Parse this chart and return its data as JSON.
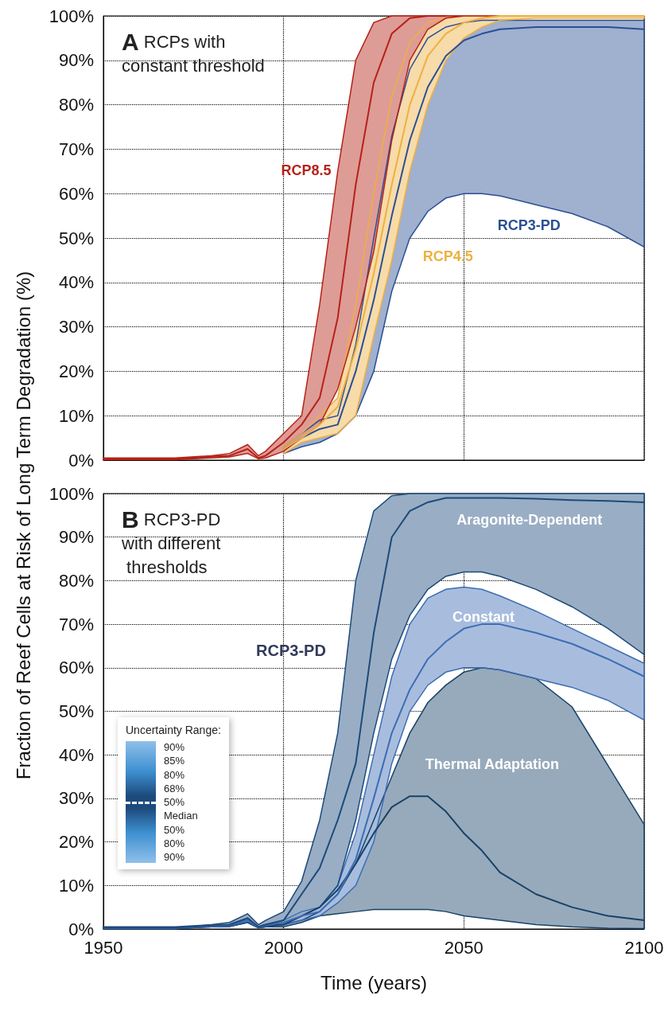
{
  "chart_data": [
    {
      "type": "line",
      "title": "A RCPs with constant threshold",
      "ylabel": "Fraction of Reef Cells at Risk of Long Term Degradation (%)",
      "x": [
        1950,
        1960,
        1970,
        1980,
        1985,
        1990,
        1993,
        1995,
        2000,
        2005,
        2010,
        2015,
        2020,
        2025,
        2030,
        2035,
        2040,
        2045,
        2050,
        2055,
        2060,
        2070,
        2080,
        2090,
        2100
      ],
      "series": [
        {
          "name": "RCP8.5",
          "color": "#b52218",
          "values": [
            0.3,
            0.3,
            0.3,
            0.8,
            1,
            2.5,
            0.5,
            1,
            4,
            8,
            14,
            32,
            62,
            85,
            96,
            99.5,
            100,
            100,
            null,
            null,
            null,
            null,
            null,
            null,
            null
          ],
          "lower": [
            0.1,
            0.1,
            0.1,
            0.5,
            0.7,
            1.5,
            0.3,
            0.5,
            2,
            5,
            8,
            16,
            30,
            47,
            72,
            90,
            97,
            99.5,
            100,
            100,
            100,
            100,
            100,
            100,
            100
          ],
          "upper": [
            0.5,
            0.5,
            0.5,
            1,
            1.5,
            3.5,
            1,
            2,
            6,
            10,
            35,
            65,
            90,
            98.5,
            100,
            100,
            100,
            100,
            100,
            100,
            100,
            100,
            100,
            100,
            100
          ]
        },
        {
          "name": "RCP4.5",
          "color": "#eeb040",
          "values": [
            null,
            null,
            null,
            null,
            null,
            null,
            null,
            null,
            2.5,
            5,
            8,
            12,
            25,
            42,
            62,
            80,
            91,
            96,
            98.5,
            99.5,
            100,
            100,
            100,
            100,
            100
          ],
          "lower": [
            null,
            null,
            null,
            null,
            null,
            null,
            null,
            null,
            1.5,
            4,
            5,
            6,
            10,
            28,
            45,
            65,
            80,
            90,
            95,
            97.5,
            99,
            99.5,
            99.5,
            99.5,
            99.5
          ],
          "upper": [
            null,
            null,
            null,
            null,
            null,
            null,
            null,
            null,
            3,
            6,
            10,
            14,
            35,
            60,
            82,
            94,
            98.5,
            99.5,
            100,
            100,
            100,
            100,
            100,
            100,
            100
          ]
        },
        {
          "name": "RCP3-PD",
          "color": "#2b4f95",
          "values": [
            null,
            null,
            null,
            null,
            null,
            null,
            null,
            null,
            2.5,
            5,
            7,
            8,
            20,
            36,
            55,
            72,
            84,
            91,
            94.5,
            96,
            97,
            97.5,
            97.5,
            97.5,
            97
          ],
          "lower": [
            null,
            null,
            null,
            null,
            null,
            null,
            null,
            null,
            1.5,
            3,
            4,
            6,
            10,
            20,
            38,
            50,
            56,
            59,
            60,
            60,
            59.5,
            57.5,
            55.5,
            52.5,
            48
          ],
          "upper": [
            null,
            null,
            null,
            null,
            null,
            null,
            null,
            null,
            3,
            6,
            9,
            10,
            26,
            50,
            73,
            88,
            95,
            97.5,
            98.5,
            99,
            99,
            99,
            99,
            99,
            99
          ]
        }
      ],
      "xlim": [
        1950,
        2100
      ],
      "xticks": [
        1950,
        2000,
        2050,
        2100
      ],
      "ylim": [
        0,
        100
      ],
      "yticks": [
        {
          "value": 0,
          "label": "0%"
        },
        {
          "value": 10,
          "label": "10%"
        },
        {
          "value": 20,
          "label": "20%"
        },
        {
          "value": 30,
          "label": "30%"
        },
        {
          "value": 40,
          "label": "40%"
        },
        {
          "value": 50,
          "label": "50%"
        },
        {
          "value": 60,
          "label": "60%"
        },
        {
          "value": 70,
          "label": "70%"
        },
        {
          "value": 80,
          "label": "80%"
        },
        {
          "value": 90,
          "label": "90%"
        },
        {
          "value": 100,
          "label": "100%"
        }
      ],
      "grid": true,
      "tick_labels": "y"
    },
    {
      "type": "line",
      "title": "B RCP3-PD with different thresholds",
      "subtitle": "RCP3-PD",
      "xlabel": "Time (years)",
      "legend_title": "Uncertainty Range:",
      "x": [
        1950,
        1960,
        1970,
        1980,
        1985,
        1990,
        1993,
        1995,
        2000,
        2005,
        2010,
        2015,
        2020,
        2025,
        2030,
        2035,
        2040,
        2045,
        2050,
        2055,
        2060,
        2070,
        2080,
        2090,
        2100
      ],
      "series": [
        {
          "name": "Aragonite-Dependent",
          "color": "#1d4a7c",
          "values": [
            0.3,
            0.3,
            0.3,
            0.8,
            1,
            2.5,
            0.5,
            1,
            2,
            8,
            14,
            25,
            38,
            68,
            90,
            96,
            98,
            99,
            99,
            99,
            99,
            98.8,
            98.5,
            98.3,
            98
          ],
          "lower": [
            0.1,
            0.1,
            0.1,
            0.5,
            0.6,
            1.5,
            0.3,
            0.5,
            1,
            3,
            5,
            10,
            25,
            45,
            62,
            72,
            78,
            81,
            82,
            82,
            81,
            78,
            74,
            69,
            63
          ],
          "upper": [
            0.5,
            0.5,
            0.5,
            1,
            1.5,
            3.5,
            1,
            2,
            4,
            11,
            25,
            45,
            80,
            96,
            99.5,
            100,
            100,
            100,
            100,
            100,
            100,
            100,
            100,
            100,
            100
          ]
        },
        {
          "name": "Constant",
          "color": "#3d6db4",
          "values": [
            0.2,
            0.2,
            0.2,
            0.6,
            0.8,
            2,
            0.4,
            0.8,
            1.5,
            3,
            4,
            8,
            16,
            30,
            45,
            55,
            62,
            66,
            69,
            70,
            70,
            68,
            65.5,
            62,
            58
          ],
          "lower": [
            0.1,
            0.1,
            0.1,
            0.5,
            0.6,
            1.5,
            0.3,
            0.5,
            1,
            2,
            3,
            6,
            10,
            20,
            38,
            50,
            56,
            59,
            60,
            60,
            59.5,
            57.5,
            55.5,
            52.5,
            48
          ],
          "upper": [
            0.3,
            0.3,
            0.3,
            0.8,
            1,
            2.5,
            0.5,
            1,
            2,
            4,
            5,
            10,
            22,
            40,
            58,
            70,
            76,
            78,
            78.5,
            78,
            76.5,
            73,
            69,
            65,
            61
          ]
        },
        {
          "name": "Thermal Adaptation",
          "color": "#174268",
          "values": [
            0.2,
            0.2,
            0.2,
            0.6,
            0.8,
            2,
            0.4,
            0.8,
            1,
            3,
            5,
            9,
            15,
            22,
            28,
            30.5,
            30.5,
            27,
            22,
            18,
            13,
            8,
            5,
            3,
            2
          ],
          "lower": [
            0.1,
            0.1,
            0.1,
            0.5,
            0.6,
            1.5,
            0.3,
            0.5,
            0.5,
            1.5,
            3,
            3.5,
            4,
            4.5,
            4.5,
            4.5,
            4.5,
            4,
            3,
            2.5,
            2,
            1,
            0.5,
            0.2,
            0.1
          ],
          "upper": [
            0.3,
            0.3,
            0.3,
            0.8,
            1,
            2.5,
            0.5,
            1,
            1,
            2,
            4,
            8,
            15,
            25,
            35,
            45,
            52,
            56,
            59,
            60,
            59.5,
            57.5,
            51,
            37.5,
            24
          ]
        }
      ],
      "annotations": [
        "90%",
        "85%",
        "80%",
        "68%",
        "50%",
        "Median",
        "50%",
        "80%",
        "90%"
      ],
      "xlim": [
        1950,
        2100
      ],
      "xticks": [
        1950,
        2000,
        2050,
        2100
      ],
      "ylim": [
        0,
        100
      ],
      "yticks": [
        {
          "value": 0,
          "label": "0%"
        },
        {
          "value": 10,
          "label": "10%"
        },
        {
          "value": 20,
          "label": "20%"
        },
        {
          "value": 30,
          "label": "30%"
        },
        {
          "value": 40,
          "label": "40%"
        },
        {
          "value": 50,
          "label": "50%"
        },
        {
          "value": 60,
          "label": "60%"
        },
        {
          "value": 70,
          "label": "70%"
        },
        {
          "value": 80,
          "label": "80%"
        },
        {
          "value": 90,
          "label": "90%"
        },
        {
          "value": 100,
          "label": "100%"
        }
      ],
      "grid": true
    }
  ]
}
